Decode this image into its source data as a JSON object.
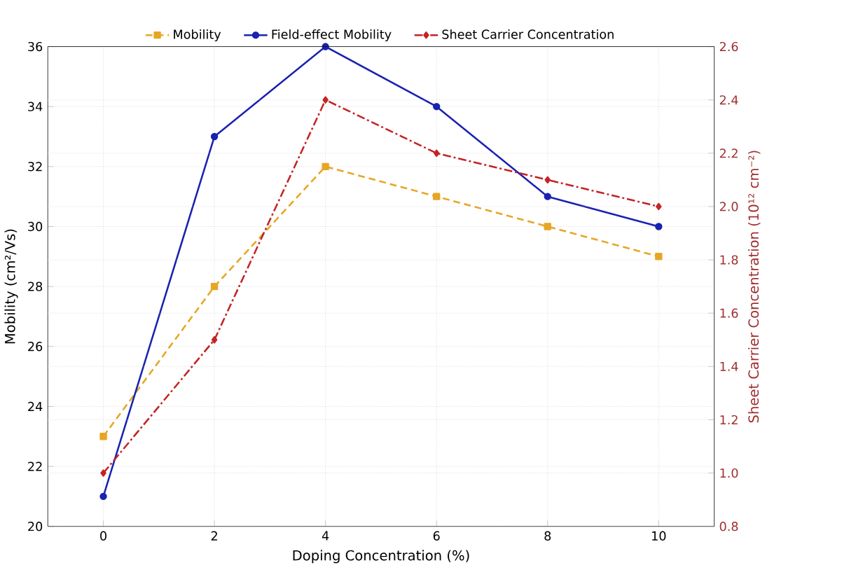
{
  "chart_data": {
    "type": "line",
    "xlabel": "Doping Concentration (%)",
    "ylabel": "Mobility (cm²/Vs)",
    "y2label": "Sheet Carrier Concentration (10¹² cm⁻²)",
    "x": [
      0,
      2,
      4,
      6,
      8,
      10
    ],
    "series": [
      {
        "name": "Mobility",
        "color": "#e6a623",
        "values": [
          23,
          28,
          32,
          31,
          30,
          29
        ],
        "marker": "square",
        "line_style": "dashed"
      },
      {
        "name": "Field-effect Mobility",
        "color": "#1a22b0",
        "values": [
          21,
          33,
          36,
          34,
          31,
          30
        ],
        "marker": "circle",
        "line_style": "solid"
      },
      {
        "name": "Sheet Carrier Concentration",
        "color": "#c42424",
        "values": [
          1.0,
          1.5,
          2.4,
          2.2,
          2.1,
          2.0
        ],
        "marker": "diamond",
        "line_style": "dashdot",
        "axis": "y2"
      }
    ],
    "xlim": [
      -1,
      11
    ],
    "xticks": [
      0,
      2,
      4,
      6,
      8,
      10
    ],
    "ylim": [
      20,
      36
    ],
    "yticks": [
      20,
      22,
      24,
      26,
      28,
      30,
      32,
      34,
      36
    ],
    "y2lim": [
      0.8,
      2.6
    ],
    "y2ticks": [
      0.8,
      {
        "value": 1,
        "label": "1.0"
      },
      1.2,
      1.4,
      1.6,
      1.8,
      {
        "value": 2,
        "label": "2.0"
      },
      2.2,
      2.4,
      2.6
    ],
    "grid": true,
    "legend": "top"
  }
}
